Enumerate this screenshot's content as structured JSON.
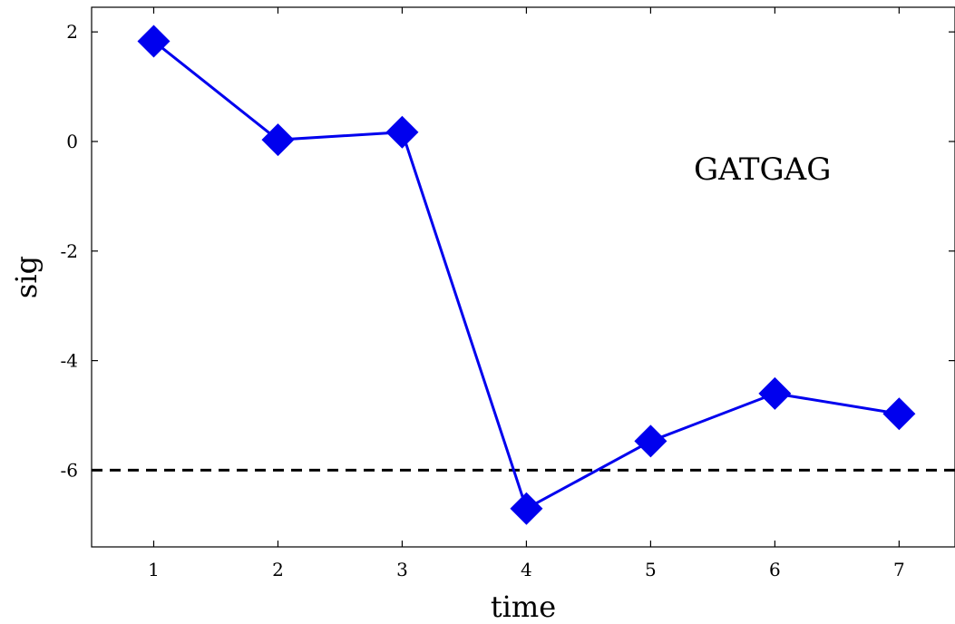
{
  "chart_data": {
    "type": "line",
    "title": "",
    "xlabel": "time",
    "ylabel": "sig",
    "xlim": [
      0.5,
      7.45
    ],
    "ylim": [
      -7.4,
      2.45
    ],
    "x_ticks": [
      1,
      2,
      3,
      4,
      5,
      6,
      7
    ],
    "y_ticks": [
      2,
      0,
      -2,
      -4,
      -6
    ],
    "grid": false,
    "series": [
      {
        "x": [
          1,
          2,
          3,
          4,
          5,
          6,
          7
        ],
        "y": [
          1.83,
          0.03,
          0.17,
          -6.7,
          -5.47,
          -4.6,
          -4.97
        ],
        "color": "#0000ee",
        "marker": "diamond"
      }
    ],
    "reference_line": {
      "y": -6,
      "style": "dashed",
      "color": "#000000"
    },
    "annotation": {
      "text": "GATGAG",
      "x": 5.9,
      "y": -0.5
    }
  }
}
